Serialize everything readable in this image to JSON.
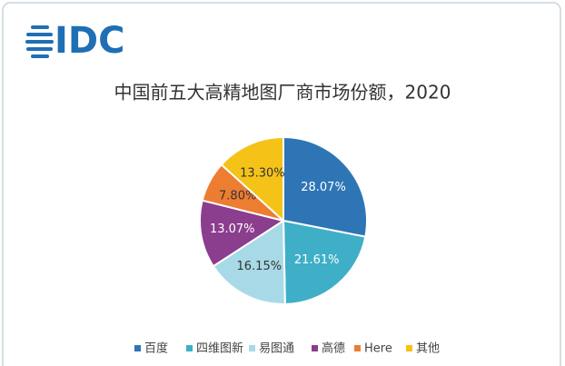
{
  "logo": "IDC",
  "chart_data": {
    "type": "pie",
    "title": "中国前五大高精地图厂商市场份额，2020",
    "categories": [
      "百度",
      "四维图新",
      "易图通",
      "高德",
      "Here",
      "其他"
    ],
    "values": [
      28.07,
      21.61,
      16.15,
      13.07,
      7.8,
      13.3
    ],
    "value_labels": [
      "28.07%",
      "21.61%",
      "16.15%",
      "13.07%",
      "7.80%",
      "13.30%"
    ],
    "colors": [
      "#2e75b6",
      "#3fafc8",
      "#a8d9e6",
      "#8b3d8e",
      "#ed7d31",
      "#f5c217"
    ],
    "legend": "bottom"
  }
}
